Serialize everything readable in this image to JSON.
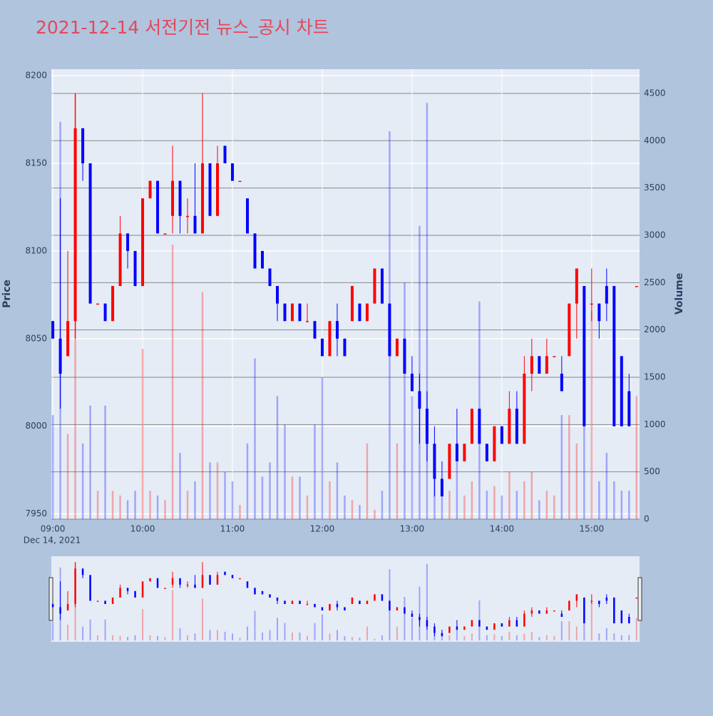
{
  "chart_data": {
    "type": "candlestick",
    "title": "2021-12-14 서전기전 뉴스_공시 차트",
    "y_title": "Price",
    "y2_title": "Volume",
    "x_date_label": "Dec 14, 2021",
    "increasing_color": "#ff0000",
    "decreasing_color": "#0000ff",
    "rangeslider": true,
    "x": [
      "2021-12-14 09:00",
      "2021-12-14 09:05",
      "2021-12-14 09:10",
      "2021-12-14 09:15",
      "2021-12-14 09:20",
      "2021-12-14 09:25",
      "2021-12-14 09:30",
      "2021-12-14 09:35",
      "2021-12-14 09:40",
      "2021-12-14 09:45",
      "2021-12-14 09:50",
      "2021-12-14 09:55",
      "2021-12-14 10:00",
      "2021-12-14 10:05",
      "2021-12-14 10:10",
      "2021-12-14 10:15",
      "2021-12-14 10:20",
      "2021-12-14 10:25",
      "2021-12-14 10:30",
      "2021-12-14 10:35",
      "2021-12-14 10:40",
      "2021-12-14 10:45",
      "2021-12-14 10:50",
      "2021-12-14 10:55",
      "2021-12-14 11:00",
      "2021-12-14 11:05",
      "2021-12-14 11:10",
      "2021-12-14 11:15",
      "2021-12-14 11:20",
      "2021-12-14 11:25",
      "2021-12-14 11:30",
      "2021-12-14 11:35",
      "2021-12-14 11:40",
      "2021-12-14 11:45",
      "2021-12-14 11:50",
      "2021-12-14 11:55",
      "2021-12-14 12:00",
      "2021-12-14 12:05",
      "2021-12-14 12:10",
      "2021-12-14 12:15",
      "2021-12-14 12:20",
      "2021-12-14 12:25",
      "2021-12-14 12:30",
      "2021-12-14 12:35",
      "2021-12-14 12:40",
      "2021-12-14 12:45",
      "2021-12-14 12:50",
      "2021-12-14 12:55",
      "2021-12-14 13:00",
      "2021-12-14 13:05",
      "2021-12-14 13:10",
      "2021-12-14 13:15",
      "2021-12-14 13:20",
      "2021-12-14 13:25",
      "2021-12-14 13:30",
      "2021-12-14 13:35",
      "2021-12-14 13:40",
      "2021-12-14 13:45",
      "2021-12-14 13:50",
      "2021-12-14 13:55",
      "2021-12-14 14:00",
      "2021-12-14 14:05",
      "2021-12-14 14:10",
      "2021-12-14 14:15",
      "2021-12-14 14:20",
      "2021-12-14 14:25",
      "2021-12-14 14:30",
      "2021-12-14 14:35",
      "2021-12-14 14:40",
      "2021-12-14 14:45",
      "2021-12-14 14:50",
      "2021-12-14 14:55",
      "2021-12-14 15:00",
      "2021-12-14 15:05",
      "2021-12-14 15:10",
      "2021-12-14 15:15",
      "2021-12-14 15:20",
      "2021-12-14 15:25",
      "2021-12-14 15:30"
    ],
    "open": [
      8060,
      8050,
      8040,
      8060,
      8170,
      8150,
      8070,
      8070,
      8060,
      8080,
      8110,
      8100,
      8080,
      8130,
      8140,
      8110,
      8120,
      8140,
      8120,
      8120,
      8110,
      8150,
      8120,
      8160,
      8150,
      8140,
      8130,
      8110,
      8100,
      8090,
      8080,
      8070,
      8060,
      8070,
      8060,
      8060,
      8050,
      8040,
      8060,
      8050,
      8060,
      8070,
      8060,
      8070,
      8090,
      8070,
      8040,
      8050,
      8030,
      8020,
      8010,
      7990,
      7970,
      7970,
      7990,
      7980,
      7990,
      8010,
      7990,
      7980,
      8000,
      7990,
      8010,
      7990,
      8030,
      8040,
      8030,
      8040,
      8030,
      8040,
      8070,
      8080,
      8070,
      8070,
      8080,
      8080,
      8040,
      8020,
      8080
    ],
    "high": [
      8060,
      8130,
      8100,
      8190,
      8170,
      8150,
      8070,
      8070,
      8080,
      8120,
      8110,
      8100,
      8130,
      8140,
      8140,
      8110,
      8160,
      8140,
      8130,
      8150,
      8190,
      8150,
      8160,
      8160,
      8150,
      8140,
      8130,
      8110,
      8100,
      8090,
      8080,
      8070,
      8070,
      8070,
      8070,
      8060,
      8050,
      8060,
      8070,
      8050,
      8080,
      8070,
      8070,
      8090,
      8090,
      8070,
      8050,
      8050,
      8040,
      8030,
      8020,
      8000,
      7980,
      7990,
      8010,
      7990,
      8010,
      8010,
      7990,
      8000,
      8000,
      8020,
      8020,
      8040,
      8050,
      8040,
      8050,
      8040,
      8040,
      8070,
      8090,
      8080,
      8090,
      8070,
      8090,
      8080,
      8040,
      8030,
      8080
    ],
    "low": [
      8050,
      8010,
      8040,
      8050,
      8140,
      8070,
      8070,
      8060,
      8060,
      8080,
      8090,
      8080,
      8080,
      8130,
      8110,
      8110,
      8110,
      8110,
      8110,
      8110,
      8110,
      8120,
      8120,
      8150,
      8140,
      8140,
      8110,
      8090,
      8090,
      8080,
      8060,
      8060,
      8060,
      8060,
      8060,
      8050,
      8040,
      8040,
      8040,
      8040,
      8060,
      8060,
      8060,
      8070,
      8070,
      8040,
      8040,
      8030,
      8020,
      7990,
      7980,
      7960,
      7960,
      7970,
      7980,
      7980,
      7990,
      7990,
      7980,
      7980,
      7990,
      7990,
      7990,
      7990,
      8020,
      8030,
      8030,
      8040,
      8020,
      8040,
      8050,
      8000,
      8060,
      8050,
      8060,
      8000,
      8000,
      8000,
      8080
    ],
    "close": [
      8050,
      8030,
      8060,
      8170,
      8150,
      8070,
      8070,
      8060,
      8080,
      8110,
      8100,
      8080,
      8130,
      8140,
      8110,
      8110,
      8140,
      8120,
      8120,
      8110,
      8150,
      8120,
      8150,
      8150,
      8140,
      8140,
      8110,
      8090,
      8090,
      8080,
      8070,
      8060,
      8070,
      8060,
      8060,
      8050,
      8040,
      8060,
      8050,
      8040,
      8080,
      8060,
      8070,
      8090,
      8070,
      8040,
      8050,
      8030,
      8020,
      8010,
      7990,
      7970,
      7960,
      7990,
      7980,
      7990,
      8010,
      7990,
      7980,
      8000,
      7990,
      8010,
      7990,
      8030,
      8040,
      8030,
      8040,
      8040,
      8020,
      8070,
      8090,
      8000,
      8070,
      8060,
      8070,
      8000,
      8000,
      8000,
      8080
    ],
    "volume": [
      1100,
      4200,
      900,
      4500,
      800,
      1200,
      300,
      1200,
      300,
      250,
      200,
      300,
      1800,
      300,
      250,
      200,
      2900,
      700,
      300,
      400,
      2400,
      600,
      600,
      500,
      400,
      150,
      800,
      1700,
      450,
      600,
      1300,
      1000,
      450,
      450,
      250,
      1000,
      1500,
      400,
      600,
      250,
      200,
      150,
      800,
      100,
      300,
      4100,
      800,
      2500,
      1300,
      3100,
      4400,
      600,
      250,
      300,
      800,
      250,
      400,
      2300,
      300,
      350,
      250,
      500,
      300,
      400,
      500,
      200,
      300,
      250,
      1100,
      1100,
      800,
      1000,
      2200,
      400,
      700,
      400,
      300,
      300,
      1300
    ],
    "xlim": [
      "2021-12-14 08:59",
      "2021-12-14 15:32"
    ],
    "xticks": [
      {
        "value": "2021-12-14 09:00",
        "label": "09:00"
      },
      {
        "value": "2021-12-14 10:00",
        "label": "10:00"
      },
      {
        "value": "2021-12-14 11:00",
        "label": "11:00"
      },
      {
        "value": "2021-12-14 12:00",
        "label": "12:00"
      },
      {
        "value": "2021-12-14 13:00",
        "label": "13:00"
      },
      {
        "value": "2021-12-14 14:00",
        "label": "14:00"
      },
      {
        "value": "2021-12-14 15:00",
        "label": "15:00"
      }
    ],
    "ylim": [
      7947,
      8203.7
    ],
    "yticks": [
      7950,
      8000,
      8050,
      8100,
      8150,
      8200
    ],
    "y2lim": [
      0,
      4756
    ],
    "y2ticks": [
      0,
      500,
      1000,
      1500,
      2000,
      2500,
      3000,
      3500,
      4000,
      4500
    ]
  }
}
